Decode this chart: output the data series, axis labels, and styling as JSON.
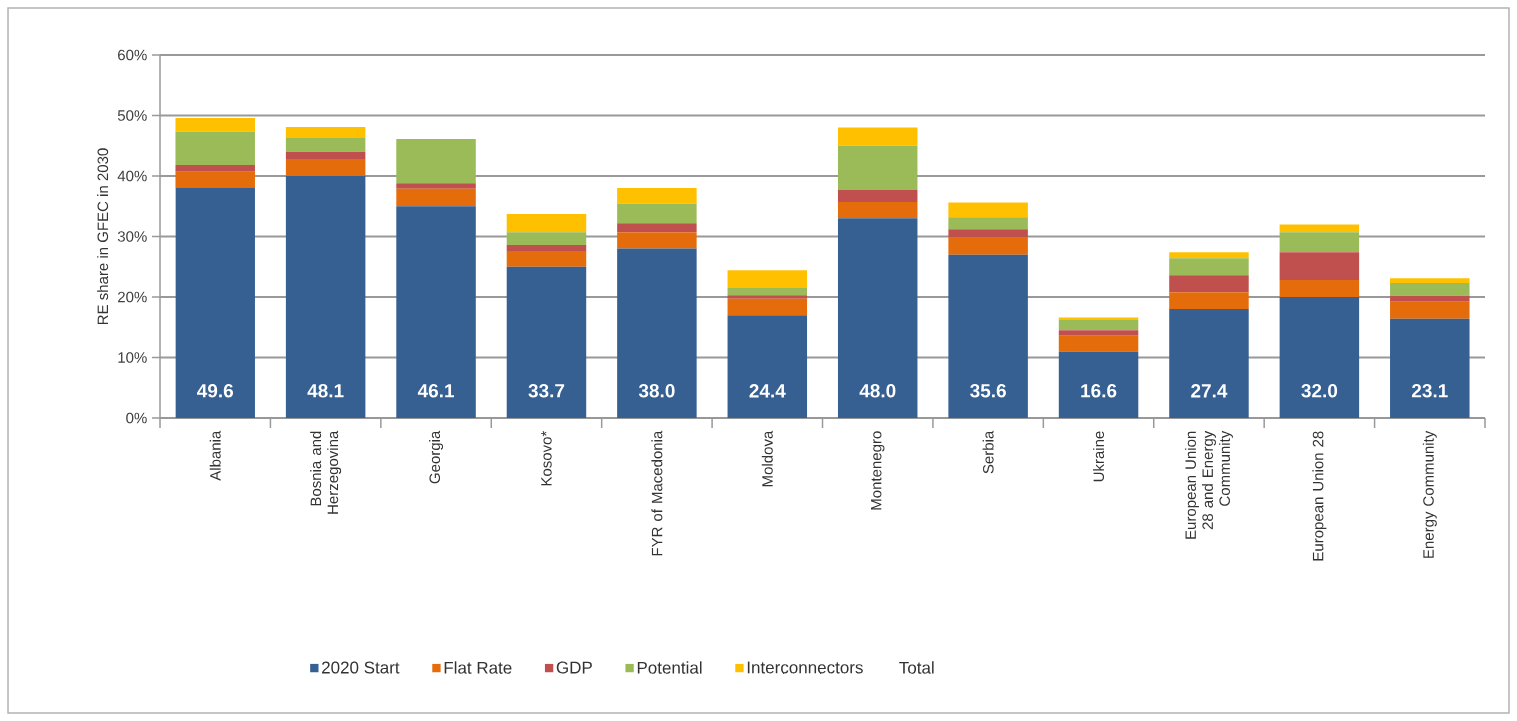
{
  "chart_data": {
    "type": "bar",
    "stacked": true,
    "ylabel": "RE share in GFEC in 2030",
    "categories": [
      "Albania",
      "Bosnia and Herzegovina",
      "Georgia",
      "Kosovo*",
      "FYR of Macedonia",
      "Moldova",
      "Montenegro",
      "Serbia",
      "Ukraine",
      "European Union 28  and Energy Community",
      "European Union 28",
      "Energy Community"
    ],
    "series": [
      {
        "name": "2020 Start",
        "color": "#366092",
        "values": [
          38.0,
          40.0,
          35.0,
          25.0,
          28.0,
          17.0,
          33.0,
          27.0,
          11.0,
          18.0,
          20.0,
          16.4
        ]
      },
      {
        "name": "Flat Rate",
        "color": "#e46c0a",
        "values": [
          2.7,
          2.8,
          2.9,
          2.6,
          2.7,
          2.7,
          2.7,
          2.8,
          2.6,
          2.8,
          2.8,
          2.8
        ]
      },
      {
        "name": "GDP",
        "color": "#c0504d",
        "values": [
          1.1,
          1.2,
          0.9,
          1.0,
          1.5,
          0.6,
          2.0,
          1.4,
          0.9,
          2.8,
          4.6,
          1.0
        ]
      },
      {
        "name": "Potential",
        "color": "#9bbb59",
        "values": [
          5.5,
          2.3,
          7.3,
          2.1,
          3.2,
          1.2,
          7.3,
          2.0,
          1.7,
          2.8,
          3.3,
          2.1
        ]
      },
      {
        "name": "Interconnectors",
        "color": "#ffc000",
        "values": [
          2.3,
          1.8,
          0.0,
          3.0,
          2.6,
          2.9,
          3.0,
          2.4,
          0.4,
          1.0,
          1.3,
          0.8
        ]
      }
    ],
    "totals": [
      "49.6",
      "48.1",
      "46.1",
      "33.7",
      "38.0",
      "24.4",
      "48.0",
      "35.6",
      "16.6",
      "27.4",
      "32.0",
      "23.1"
    ],
    "annotations": [
      "Total"
    ],
    "ylim": [
      0,
      60
    ],
    "yticks": [
      {
        "value": 0,
        "label": "0%"
      },
      {
        "value": 10,
        "label": "10%"
      },
      {
        "value": 20,
        "label": "20%"
      },
      {
        "value": 30,
        "label": "30%"
      },
      {
        "value": 40,
        "label": "40%"
      },
      {
        "value": 50,
        "label": "50%"
      },
      {
        "value": 60,
        "label": "60%"
      }
    ],
    "grid": "y",
    "legend": "bottom"
  }
}
